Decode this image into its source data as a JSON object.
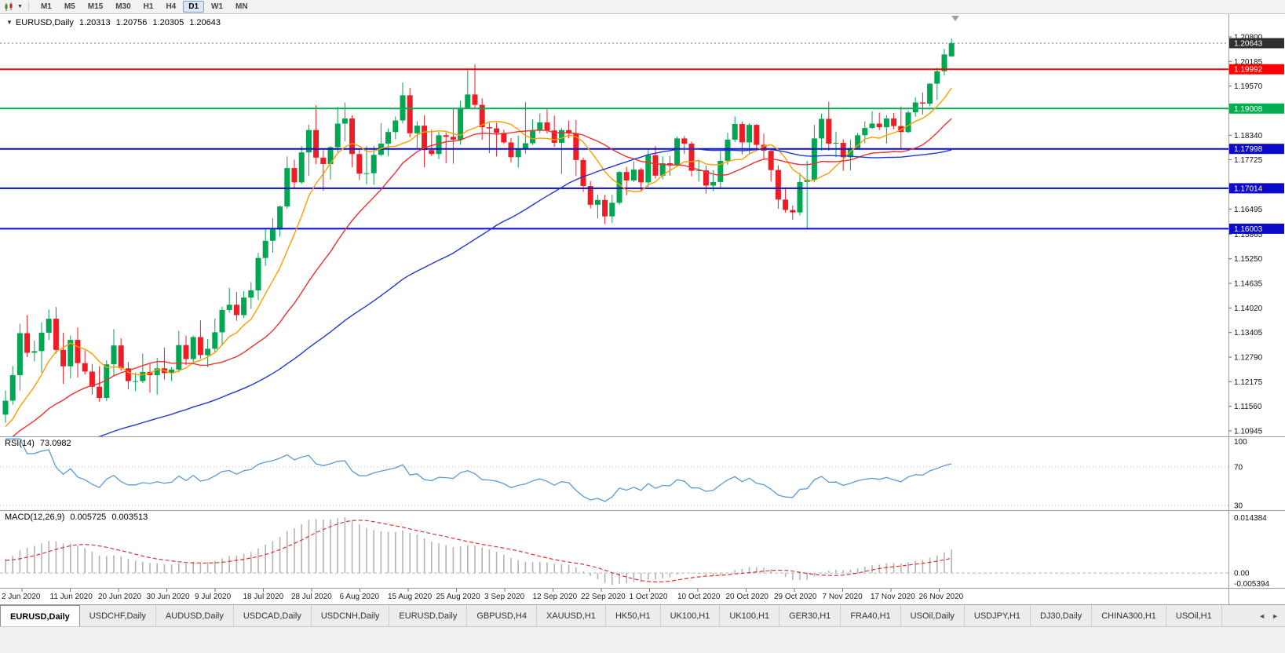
{
  "toolbar": {
    "chart_dropdown_icon": "▼",
    "timeframes": [
      "M1",
      "M5",
      "M15",
      "M30",
      "H1",
      "H4",
      "D1",
      "W1",
      "MN"
    ],
    "active_timeframe": "D1"
  },
  "header": {
    "collapse_icon": "▼",
    "symbol": "EURUSD,Daily",
    "open": "1.20313",
    "high": "1.20756",
    "low": "1.20305",
    "close": "1.20643"
  },
  "rsi": {
    "name": "RSI(14)",
    "value": "73.0982",
    "period": 14,
    "levels": [
      100,
      70,
      30
    ],
    "scale_labels": [
      "100",
      "70",
      "30"
    ],
    "line_color": "#5b9bd5"
  },
  "macd": {
    "name": "MACD(12,26,9)",
    "value_main": "0.005725",
    "value_signal": "0.003513",
    "fast": 12,
    "slow": 26,
    "signal": 9,
    "scale_labels": {
      "top": "0.014384",
      "zero": "0.00",
      "bottom": "-0.005394"
    },
    "histogram_color": "#b4b4b4",
    "signal_color": "#e03131"
  },
  "price_scale": {
    "ticks": [
      "1.20800",
      "1.20185",
      "1.19570",
      "1.18340",
      "1.17725",
      "1.16495",
      "1.15865",
      "1.15250",
      "1.14635",
      "1.14020",
      "1.13405",
      "1.12790",
      "1.12175",
      "1.11560",
      "1.10945"
    ],
    "badges": [
      {
        "text": "1.20643",
        "price": 1.20643,
        "bg": "#2f2f2f"
      },
      {
        "text": "1.19992",
        "price": 1.19992,
        "bg": "#ff0000"
      },
      {
        "text": "1.19008",
        "price": 1.19008,
        "bg": "#00b050"
      },
      {
        "text": "1.17998",
        "price": 1.17998,
        "bg": "#0a0ac8"
      },
      {
        "text": "1.17014",
        "price": 1.17014,
        "bg": "#0a0ac8"
      },
      {
        "text": "1.16003",
        "price": 1.16003,
        "bg": "#0a0ac8"
      }
    ]
  },
  "chart_data": {
    "type": "candlestick",
    "symbol": "EURUSD",
    "timeframe": "Daily",
    "up_color": "#00a651",
    "down_color": "#ee1c25",
    "ylim": [
      1.10945,
      1.208
    ],
    "current_price": 1.20643,
    "x_labels": [
      "2 Jun 2020",
      "11 Jun 2020",
      "20 Jun 2020",
      "30 Jun 2020",
      "9 Jul 2020",
      "18 Jul 2020",
      "28 Jul 2020",
      "6 Aug 2020",
      "15 Aug 2020",
      "25 Aug 2020",
      "3 Sep 2020",
      "12 Sep 2020",
      "22 Sep 2020",
      "1 Oct 2020",
      "10 Oct 2020",
      "20 Oct 2020",
      "29 Oct 2020",
      "7 Nov 2020",
      "17 Nov 2020",
      "26 Nov 2020"
    ],
    "sr_lines": [
      {
        "price": 1.19992,
        "color": "#ff0000"
      },
      {
        "price": 1.19008,
        "color": "#00b050"
      },
      {
        "price": 1.17998,
        "color": "#0a0ac8"
      },
      {
        "price": 1.17014,
        "color": "#0a0ac8"
      },
      {
        "price": 1.16003,
        "color": "#0a0ac8"
      }
    ],
    "moving_averages": [
      {
        "period": 8,
        "color": "#ff9d00"
      },
      {
        "period": 21,
        "color": "#f03030"
      },
      {
        "period": 55,
        "color": "#2038d0"
      }
    ],
    "ohlc": [
      [
        1.1135,
        1.1195,
        1.1115,
        1.117
      ],
      [
        1.117,
        1.1257,
        1.116,
        1.1234
      ],
      [
        1.1234,
        1.1362,
        1.1196,
        1.1339
      ],
      [
        1.1339,
        1.1384,
        1.1279,
        1.129
      ],
      [
        1.129,
        1.132,
        1.1268,
        1.1294
      ],
      [
        1.1294,
        1.1366,
        1.124,
        1.134
      ],
      [
        1.134,
        1.1398,
        1.1322,
        1.1375
      ],
      [
        1.1375,
        1.1404,
        1.1288,
        1.1297
      ],
      [
        1.1297,
        1.134,
        1.1212,
        1.1256
      ],
      [
        1.1256,
        1.1333,
        1.1226,
        1.1322
      ],
      [
        1.1322,
        1.1353,
        1.1228,
        1.1264
      ],
      [
        1.1264,
        1.1296,
        1.1235,
        1.1243
      ],
      [
        1.1243,
        1.1262,
        1.1185,
        1.1205
      ],
      [
        1.1205,
        1.1256,
        1.1168,
        1.1177
      ],
      [
        1.1177,
        1.1271,
        1.1169,
        1.1261
      ],
      [
        1.1261,
        1.1349,
        1.1233,
        1.1308
      ],
      [
        1.1308,
        1.1326,
        1.1245,
        1.1251
      ],
      [
        1.1251,
        1.1267,
        1.1199,
        1.1219
      ],
      [
        1.1219,
        1.124,
        1.1194,
        1.1219
      ],
      [
        1.1219,
        1.1288,
        1.1214,
        1.1242
      ],
      [
        1.1242,
        1.1262,
        1.119,
        1.1234
      ],
      [
        1.1234,
        1.1277,
        1.1185,
        1.1251
      ],
      [
        1.1251,
        1.1303,
        1.1223,
        1.1239
      ],
      [
        1.1239,
        1.1254,
        1.1219,
        1.1248
      ],
      [
        1.1248,
        1.1345,
        1.1241,
        1.1309
      ],
      [
        1.1309,
        1.1333,
        1.1259,
        1.1274
      ],
      [
        1.1274,
        1.1333,
        1.1265,
        1.1329
      ],
      [
        1.1329,
        1.1371,
        1.1275,
        1.1284
      ],
      [
        1.1284,
        1.1324,
        1.1254,
        1.13
      ],
      [
        1.13,
        1.1375,
        1.1292,
        1.1341
      ],
      [
        1.1341,
        1.1405,
        1.1311,
        1.1397
      ],
      [
        1.1397,
        1.1452,
        1.139,
        1.141
      ],
      [
        1.141,
        1.1442,
        1.137,
        1.1384
      ],
      [
        1.1384,
        1.1444,
        1.1377,
        1.1428
      ],
      [
        1.1428,
        1.1467,
        1.14,
        1.1446
      ],
      [
        1.1446,
        1.154,
        1.1422,
        1.1527
      ],
      [
        1.1527,
        1.1601,
        1.1507,
        1.157
      ],
      [
        1.157,
        1.1627,
        1.154,
        1.1598
      ],
      [
        1.1598,
        1.1658,
        1.158,
        1.1656
      ],
      [
        1.1656,
        1.1781,
        1.165,
        1.1752
      ],
      [
        1.1752,
        1.1773,
        1.1701,
        1.1716
      ],
      [
        1.1716,
        1.1807,
        1.1712,
        1.1791
      ],
      [
        1.1791,
        1.186,
        1.1733,
        1.1847
      ],
      [
        1.1847,
        1.1909,
        1.1762,
        1.1778
      ],
      [
        1.1778,
        1.1797,
        1.1695,
        1.1762
      ],
      [
        1.1762,
        1.1807,
        1.1723,
        1.1804
      ],
      [
        1.1804,
        1.1905,
        1.1791,
        1.1863
      ],
      [
        1.1863,
        1.1916,
        1.1819,
        1.1876
      ],
      [
        1.1876,
        1.1884,
        1.1754,
        1.1787
      ],
      [
        1.1787,
        1.1798,
        1.1722,
        1.1738
      ],
      [
        1.1738,
        1.1807,
        1.1711,
        1.1739
      ],
      [
        1.1739,
        1.1807,
        1.171,
        1.1785
      ],
      [
        1.1785,
        1.1864,
        1.1782,
        1.1813
      ],
      [
        1.1813,
        1.1851,
        1.1782,
        1.1842
      ],
      [
        1.1842,
        1.1881,
        1.1824,
        1.1871
      ],
      [
        1.1871,
        1.1966,
        1.1863,
        1.1934
      ],
      [
        1.1934,
        1.1952,
        1.1829,
        1.1839
      ],
      [
        1.1839,
        1.1869,
        1.1801,
        1.1858
      ],
      [
        1.1858,
        1.1884,
        1.1754,
        1.1797
      ],
      [
        1.1797,
        1.1848,
        1.1782,
        1.1787
      ],
      [
        1.1787,
        1.1843,
        1.1774,
        1.1834
      ],
      [
        1.1834,
        1.1841,
        1.1764,
        1.183
      ],
      [
        1.183,
        1.1902,
        1.1763,
        1.1823
      ],
      [
        1.1823,
        1.192,
        1.181,
        1.1903
      ],
      [
        1.1903,
        1.1997,
        1.1899,
        1.1936
      ],
      [
        1.1936,
        1.2011,
        1.1901,
        1.191
      ],
      [
        1.191,
        1.1926,
        1.1823,
        1.1854
      ],
      [
        1.1854,
        1.1865,
        1.1789,
        1.1851
      ],
      [
        1.1851,
        1.1865,
        1.1781,
        1.184
      ],
      [
        1.184,
        1.1848,
        1.1812,
        1.1816
      ],
      [
        1.1816,
        1.1827,
        1.1766,
        1.1779
      ],
      [
        1.1779,
        1.1833,
        1.1753,
        1.1801
      ],
      [
        1.1801,
        1.1917,
        1.1788,
        1.1814
      ],
      [
        1.1814,
        1.1874,
        1.1809,
        1.1845
      ],
      [
        1.1845,
        1.1888,
        1.1839,
        1.1866
      ],
      [
        1.1866,
        1.1899,
        1.1838,
        1.1846
      ],
      [
        1.1846,
        1.1883,
        1.1805,
        1.1815
      ],
      [
        1.1815,
        1.1852,
        1.1737,
        1.1847
      ],
      [
        1.1847,
        1.1871,
        1.1826,
        1.1839
      ],
      [
        1.1839,
        1.1872,
        1.1732,
        1.1772
      ],
      [
        1.1772,
        1.1778,
        1.1692,
        1.1707
      ],
      [
        1.1707,
        1.1719,
        1.1651,
        1.166
      ],
      [
        1.166,
        1.1686,
        1.1626,
        1.1672
      ],
      [
        1.1672,
        1.1685,
        1.1612,
        1.1631
      ],
      [
        1.1631,
        1.1685,
        1.1615,
        1.1665
      ],
      [
        1.1665,
        1.1745,
        1.166,
        1.1742
      ],
      [
        1.1742,
        1.1755,
        1.1684,
        1.1721
      ],
      [
        1.1721,
        1.1769,
        1.1717,
        1.1748
      ],
      [
        1.1748,
        1.1752,
        1.1695,
        1.1716
      ],
      [
        1.1716,
        1.1797,
        1.1705,
        1.1784
      ],
      [
        1.1784,
        1.1807,
        1.1725,
        1.1733
      ],
      [
        1.1733,
        1.1781,
        1.1724,
        1.1764
      ],
      [
        1.1764,
        1.1782,
        1.1733,
        1.176
      ],
      [
        1.176,
        1.1831,
        1.1755,
        1.1826
      ],
      [
        1.1826,
        1.1832,
        1.1787,
        1.1813
      ],
      [
        1.1813,
        1.1818,
        1.1731,
        1.1745
      ],
      [
        1.1745,
        1.1772,
        1.1718,
        1.1746
      ],
      [
        1.1746,
        1.1758,
        1.1688,
        1.1708
      ],
      [
        1.1708,
        1.1746,
        1.1694,
        1.1717
      ],
      [
        1.1717,
        1.1794,
        1.1703,
        1.177
      ],
      [
        1.177,
        1.184,
        1.176,
        1.1823
      ],
      [
        1.1823,
        1.1881,
        1.1817,
        1.1862
      ],
      [
        1.1862,
        1.1868,
        1.1786,
        1.1816
      ],
      [
        1.1816,
        1.1864,
        1.1786,
        1.186
      ],
      [
        1.186,
        1.1862,
        1.1799,
        1.181
      ],
      [
        1.181,
        1.1838,
        1.1775,
        1.1795
      ],
      [
        1.1795,
        1.18,
        1.1718,
        1.1747
      ],
      [
        1.1747,
        1.1759,
        1.165,
        1.1673
      ],
      [
        1.1673,
        1.1704,
        1.164,
        1.1647
      ],
      [
        1.1647,
        1.1658,
        1.1623,
        1.1641
      ],
      [
        1.1641,
        1.174,
        1.1634,
        1.1717
      ],
      [
        1.1717,
        1.177,
        1.1602,
        1.1723
      ],
      [
        1.1723,
        1.186,
        1.1716,
        1.1826
      ],
      [
        1.1826,
        1.1888,
        1.1795,
        1.1875
      ],
      [
        1.1875,
        1.1918,
        1.1795,
        1.1813
      ],
      [
        1.1813,
        1.1843,
        1.1779,
        1.1815
      ],
      [
        1.1815,
        1.1824,
        1.1745,
        1.1779
      ],
      [
        1.1779,
        1.1823,
        1.1746,
        1.1802
      ],
      [
        1.1802,
        1.184,
        1.1799,
        1.1834
      ],
      [
        1.1834,
        1.1869,
        1.1814,
        1.1852
      ],
      [
        1.1852,
        1.1894,
        1.185,
        1.1863
      ],
      [
        1.1863,
        1.1891,
        1.1847,
        1.1854
      ],
      [
        1.1854,
        1.1884,
        1.1813,
        1.1876
      ],
      [
        1.1876,
        1.189,
        1.1849,
        1.1857
      ],
      [
        1.1857,
        1.1906,
        1.1799,
        1.1842
      ],
      [
        1.1842,
        1.1896,
        1.1839,
        1.1891
      ],
      [
        1.1891,
        1.1929,
        1.188,
        1.1916
      ],
      [
        1.1916,
        1.1941,
        1.1886,
        1.1913
      ],
      [
        1.1913,
        1.1964,
        1.1907,
        1.1963
      ],
      [
        1.1963,
        1.2003,
        1.1923,
        1.1994
      ],
      [
        1.1994,
        1.205,
        1.1983,
        1.2036
      ],
      [
        1.20313,
        1.20756,
        1.20305,
        1.20643
      ]
    ]
  },
  "tabs": {
    "items": [
      "EURUSD,Daily",
      "USDCHF,Daily",
      "AUDUSD,Daily",
      "USDCAD,Daily",
      "USDCNH,Daily",
      "EURUSD,Daily",
      "GBPUSD,H4",
      "XAUUSD,H1",
      "HK50,H1",
      "UK100,H1",
      "UK100,H1",
      "GER30,H1",
      "FRA40,H1",
      "USOil,Daily",
      "USDJPY,H1",
      "DJ30,Daily",
      "CHINA300,H1",
      "USOil,H1"
    ],
    "active_index": 0,
    "scroll_left_icon": "◄",
    "scroll_right_icon": "►"
  }
}
